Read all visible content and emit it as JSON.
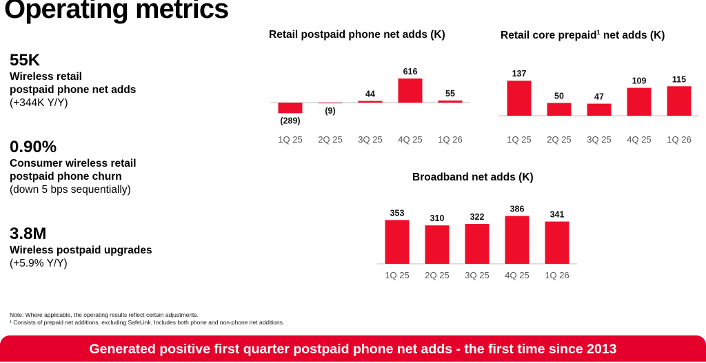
{
  "page": {
    "title": "Operating metrics"
  },
  "metrics": [
    {
      "value": "55K",
      "label_lines": [
        "Wireless retail",
        "postpaid phone net adds"
      ],
      "sub": "(+344K Y/Y)"
    },
    {
      "value": "0.90%",
      "label_lines": [
        "Consumer wireless retail",
        "postpaid phone churn"
      ],
      "sub": "(down 5 bps sequentially)"
    },
    {
      "value": "3.8M",
      "label_lines": [
        "Wireless postpaid upgrades"
      ],
      "sub": "(+5.9% Y/Y)"
    }
  ],
  "notes": {
    "line1": "Note: Where applicable, the operating results reflect certain adjustments.",
    "line2": "¹ Consists of prepaid net additions, excluding SafeLink. Includes both phone and non-phone net additions."
  },
  "banner": {
    "text": "Generated positive first quarter postpaid phone net adds - the first time since 2013"
  },
  "colors": {
    "bar": "#ee0e2a",
    "banner": "#e4002b",
    "axis": "#bdbdbd",
    "tick": "#555555"
  },
  "chart_data": [
    {
      "id": "postpaid",
      "type": "bar",
      "title": "Retail postpaid phone net adds (K)",
      "title_sup": "",
      "categories": [
        "1Q 25",
        "2Q 25",
        "3Q 25",
        "4Q 25",
        "1Q 26"
      ],
      "values": [
        -289,
        -9,
        44,
        616,
        55
      ],
      "value_labels": [
        "(289)",
        "(9)",
        "44",
        "616",
        "55"
      ],
      "ylim": [
        -300,
        650
      ]
    },
    {
      "id": "prepaid",
      "type": "bar",
      "title": "Retail core prepaid",
      "title_sup": "1",
      "title_suffix": " net adds (K)",
      "categories": [
        "1Q 25",
        "2Q 25",
        "3Q 25",
        "4Q 25",
        "1Q 26"
      ],
      "values": [
        137,
        50,
        47,
        109,
        115
      ],
      "value_labels": [
        "137",
        "50",
        "47",
        "109",
        "115"
      ],
      "ylim": [
        0,
        140
      ]
    },
    {
      "id": "broadband",
      "type": "bar",
      "title": "Broadband net adds (K)",
      "title_sup": "",
      "categories": [
        "1Q 25",
        "2Q 25",
        "3Q 25",
        "4Q 25",
        "1Q 26"
      ],
      "values": [
        353,
        310,
        322,
        386,
        341
      ],
      "value_labels": [
        "353",
        "310",
        "322",
        "386",
        "341"
      ],
      "ylim": [
        0,
        400
      ]
    }
  ]
}
